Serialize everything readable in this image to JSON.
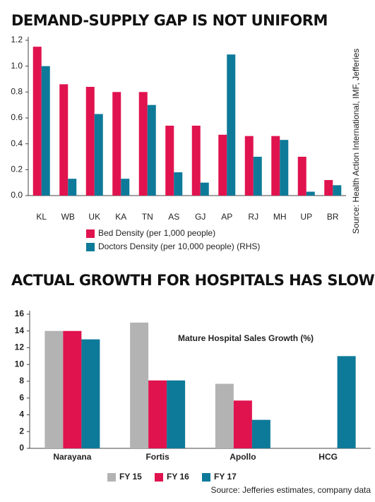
{
  "chart_data": [
    {
      "type": "bar",
      "title": "DEMAND-SUPPLY GAP IS NOT UNIFORM",
      "categories": [
        "KL",
        "WB",
        "UK",
        "KA",
        "TN",
        "AS",
        "GJ",
        "AP",
        "RJ",
        "MH",
        "UP",
        "BR"
      ],
      "series": [
        {
          "name": "Bed Density (per 1,000 people)",
          "color": "#e0134f",
          "values": [
            1.15,
            0.86,
            0.84,
            0.8,
            0.8,
            0.54,
            0.54,
            0.47,
            0.46,
            0.46,
            0.3,
            0.12
          ]
        },
        {
          "name": "Doctors Density (per 10,000 people) (RHS)",
          "color": "#0e7a99",
          "values": [
            1.0,
            0.13,
            0.63,
            0.13,
            0.7,
            0.18,
            0.1,
            1.09,
            0.3,
            0.43,
            0.03,
            0.08
          ]
        }
      ],
      "ylim": [
        0,
        1.2
      ],
      "yticks": [
        {
          "value": 0,
          "label": "0.0"
        },
        0.2,
        0.4,
        0.6,
        0.8,
        {
          "value": 1,
          "label": "1.0"
        },
        1.2
      ],
      "grid": false,
      "legend": "bottom-left",
      "source": "Source: Health Action International, IMF, Jefferies"
    },
    {
      "type": "bar",
      "title": "ACTUAL GROWTH FOR HOSPITALS HAS SLOWED",
      "subtitle": "Mature Hospital Sales Growth (%)",
      "categories": [
        "Narayana",
        "Fortis",
        "Apollo",
        "HCG"
      ],
      "series": [
        {
          "name": "FY 15",
          "color": "#b3b3b3",
          "values": [
            14,
            15,
            7.7,
            null
          ]
        },
        {
          "name": "FY 16",
          "color": "#e0134f",
          "values": [
            14,
            8.1,
            5.7,
            null
          ]
        },
        {
          "name": "FY 17",
          "color": "#0e7a99",
          "values": [
            13,
            8.1,
            3.4,
            11
          ]
        }
      ],
      "ylim": [
        0,
        16
      ],
      "yticks": [
        0,
        2,
        4,
        6,
        8,
        10,
        12,
        14,
        16
      ],
      "grid": false,
      "legend": "bottom",
      "source": "Source: Jefferies estimates, company data"
    }
  ]
}
